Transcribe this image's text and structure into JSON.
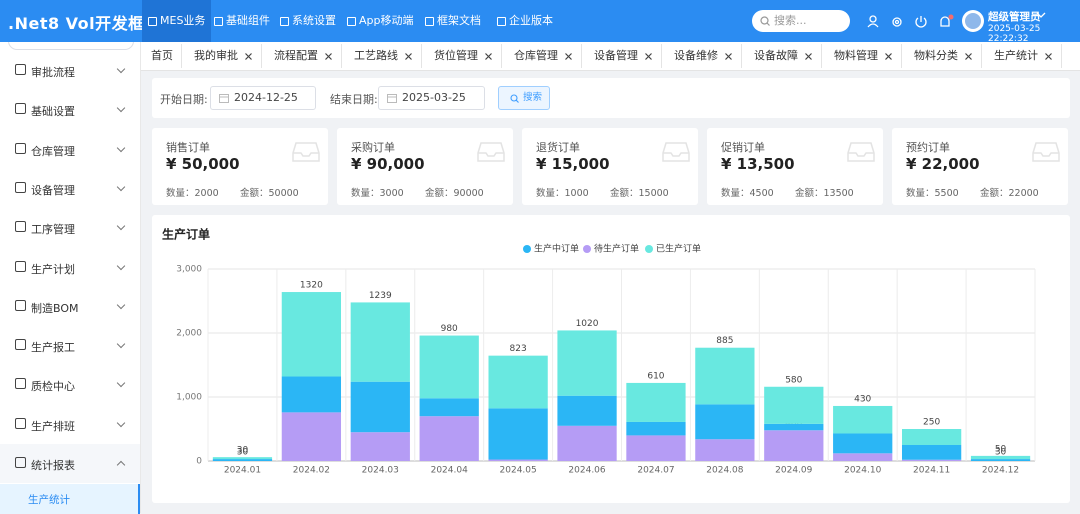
{
  "header": {
    "logo": ".Net8 Vol开发框架",
    "nav": [
      "MES业务",
      "基础组件",
      "系统设置",
      "App移动端",
      "框架文档",
      "企业版本"
    ],
    "search_placeholder": "搜索...",
    "user": "超级管理员",
    "datetime": "2025-03-25 22:22:32"
  },
  "sidebar": {
    "items": [
      "审批流程",
      "基础设置",
      "仓库管理",
      "设备管理",
      "工序管理",
      "生产计划",
      "制造BOM",
      "生产报工",
      "质检中心",
      "生产排班",
      "统计报表"
    ],
    "sub_items": [
      "生产统计"
    ]
  },
  "tabs": [
    "首页",
    "我的审批",
    "流程配置",
    "工艺路线",
    "货位管理",
    "仓库管理",
    "设备管理",
    "设备维修",
    "设备故障",
    "物料管理",
    "物料分类",
    "生产统计"
  ],
  "filter": {
    "start_label": "开始日期:",
    "start_date": "2024-12-25",
    "end_label": "结束日期:",
    "end_date": "2025-03-25",
    "button": "搜索"
  },
  "cards": [
    {
      "title": "销售订单",
      "amount": "¥ 50,000",
      "count": "数量：2000",
      "total": "金额：50000"
    },
    {
      "title": "采购订单",
      "amount": "¥ 90,000",
      "count": "数量：3000",
      "total": "金额：90000"
    },
    {
      "title": "退货订单",
      "amount": "¥ 15,000",
      "count": "数量：1000",
      "total": "金额：15000"
    },
    {
      "title": "促销订单",
      "amount": "¥ 13,500",
      "count": "数量：4500",
      "total": "金额：13500"
    },
    {
      "title": "预约订单",
      "amount": "¥ 22,000",
      "count": "数量：5500",
      "total": "金额：22000"
    }
  ],
  "chart_data": {
    "type": "stacked-bar",
    "title": "生产订单",
    "categories": [
      "2024.01",
      "2024.02",
      "2024.03",
      "2024.04",
      "2024.05",
      "2024.06",
      "2024.07",
      "2024.08",
      "2024.09",
      "2024.10",
      "2024.11",
      "2024.12"
    ],
    "series": [
      {
        "name": "生产中订单",
        "color": "#2bb6f5",
        "values": [
          30,
          560,
          789,
          280,
          800,
          470,
          210,
          545,
          100,
          310,
          230,
          30
        ]
      },
      {
        "name": "待生产订单",
        "color": "#b59cf5",
        "values": [
          0,
          760,
          450,
          700,
          23,
          550,
          400,
          340,
          480,
          120,
          20,
          0
        ]
      },
      {
        "name": "已生产订单",
        "color": "#68e8e0",
        "values": [
          30,
          1320,
          1239,
          980,
          823,
          1020,
          610,
          885,
          580,
          430,
          250,
          50
        ]
      }
    ],
    "ylim": [
      0,
      3000
    ],
    "yticks": [
      0,
      {
        "value": 1000,
        "label": "1,000"
      },
      {
        "value": 2000,
        "label": "2,000"
      },
      {
        "value": 3000,
        "label": "3,000"
      }
    ],
    "grid": true,
    "legend": "top"
  }
}
